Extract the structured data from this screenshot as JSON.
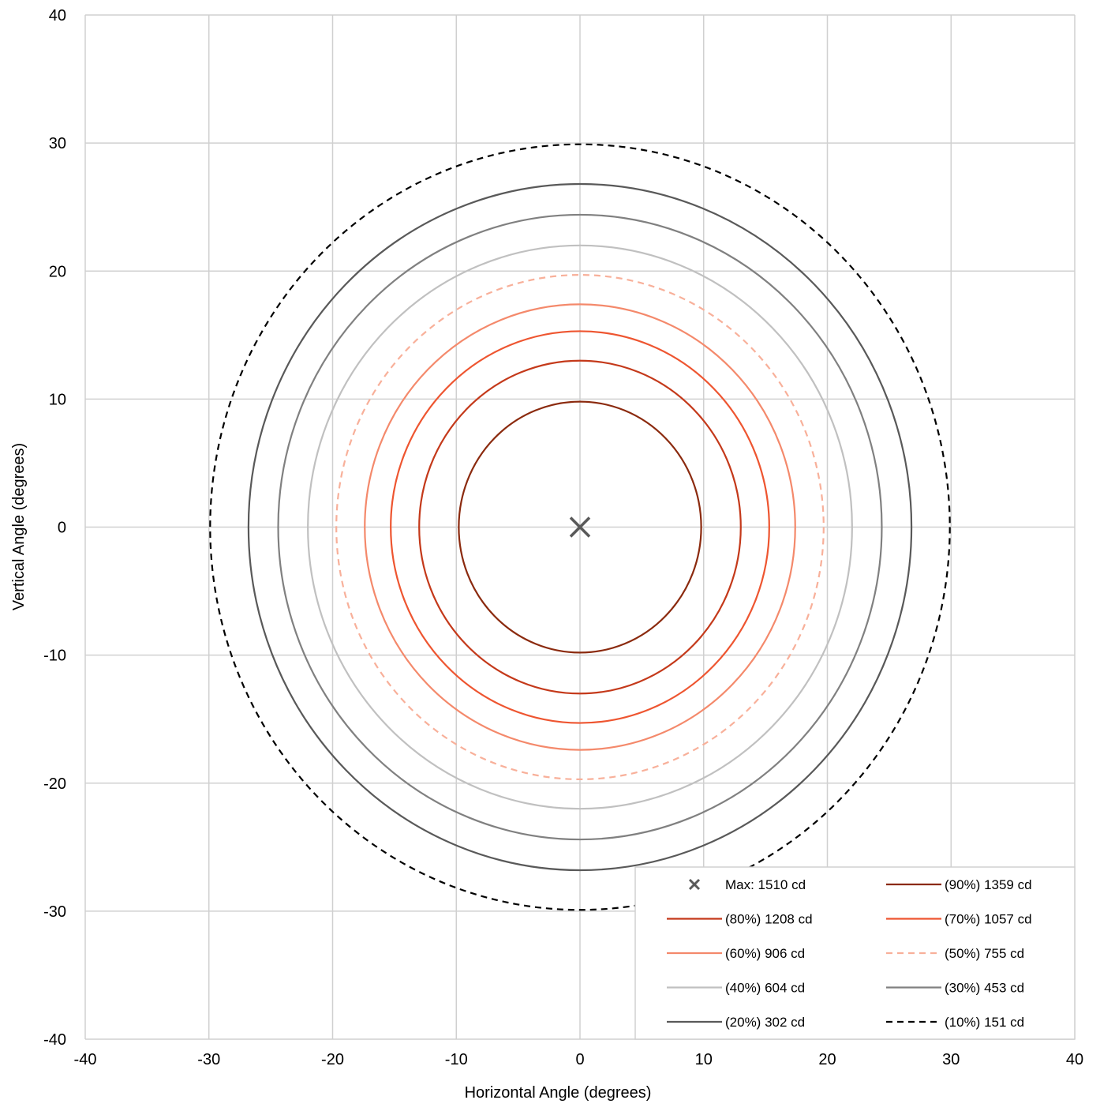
{
  "chart_data": {
    "type": "line",
    "title": "",
    "xlabel": "Horizontal Angle (degrees)",
    "ylabel": "Vertical Angle (degrees)",
    "xlim": [
      -40,
      40
    ],
    "ylim": [
      -40,
      40
    ],
    "xticks": [
      -40,
      -30,
      -20,
      -10,
      0,
      10,
      20,
      30,
      40
    ],
    "yticks": [
      -40,
      -30,
      -20,
      -10,
      0,
      10,
      20,
      30,
      40
    ],
    "xtick_labels": [
      "-40",
      "-30",
      "-20",
      "-10",
      "0",
      "10",
      "20",
      "30",
      "40"
    ],
    "ytick_labels": [
      "-40",
      "-30",
      "-20",
      "-10",
      "0",
      "10",
      "20",
      "30",
      "40"
    ],
    "grid": true,
    "legend_position": "bottom-right",
    "max_point": {
      "label": "Max: 1510 cd",
      "x": 0,
      "y": 0,
      "color": "#595959"
    },
    "series": [
      {
        "name": "(90%) 1359 cd",
        "radius": 9.8,
        "color": "#8B2A0E",
        "dashed": false
      },
      {
        "name": "(80%) 1208 cd",
        "radius": 13.0,
        "color": "#C4391A",
        "dashed": false
      },
      {
        "name": "(70%) 1057 cd",
        "radius": 15.3,
        "color": "#EE5530",
        "dashed": false
      },
      {
        "name": "(60%) 906 cd",
        "radius": 17.4,
        "color": "#F4896B",
        "dashed": false
      },
      {
        "name": "(50%) 755 cd",
        "radius": 19.7,
        "color": "#F8B09A",
        "dashed": true
      },
      {
        "name": "(40%) 604 cd",
        "radius": 22.0,
        "color": "#C0C0C0",
        "dashed": false
      },
      {
        "name": "(30%) 453 cd",
        "radius": 24.4,
        "color": "#808080",
        "dashed": false
      },
      {
        "name": "(20%) 302 cd",
        "radius": 26.8,
        "color": "#595959",
        "dashed": false
      },
      {
        "name": "(10%) 151 cd",
        "radius": 29.9,
        "color": "#000000",
        "dashed": true
      }
    ],
    "legend_order": [
      "max",
      0,
      1,
      2,
      3,
      4,
      5,
      6,
      7,
      8
    ]
  }
}
